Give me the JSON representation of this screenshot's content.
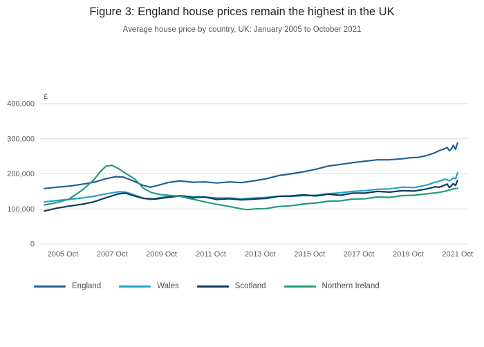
{
  "title": "Figure 3: England house prices remain the highest in the UK",
  "subtitle": "Average house price by country, UK: January 2005 to October 2021",
  "chart_data": {
    "type": "line",
    "title": "Figure 3: England house prices remain the highest in the UK",
    "subtitle": "Average house price by country, UK: January 2005 to October 2021",
    "unit_label": "£",
    "grid": true,
    "legend_position": "bottom-left",
    "ylim": [
      0,
      400000
    ],
    "yticks": [
      0,
      100000,
      200000,
      300000,
      400000
    ],
    "ytick_labels": [
      "0",
      "100,000",
      "200,000",
      "300,000",
      "400,000"
    ],
    "x_domain": [
      2004.8,
      2022.15
    ],
    "xticks": [
      2005.75,
      2007.75,
      2009.75,
      2011.75,
      2013.75,
      2015.75,
      2017.75,
      2019.75,
      2021.75
    ],
    "xtick_labels": [
      "2005 Oct",
      "2007 Oct",
      "2009 Oct",
      "2011 Oct",
      "2013 Oct",
      "2015 Oct",
      "2017 Oct",
      "2019 Oct",
      "2021 Oct"
    ],
    "series": [
      {
        "name": "England",
        "color": "#206095",
        "points": [
          [
            2005,
            158000
          ],
          [
            2005.5,
            162000
          ],
          [
            2006,
            165000
          ],
          [
            2006.5,
            170000
          ],
          [
            2007,
            176000
          ],
          [
            2007.5,
            186000
          ],
          [
            2007.9,
            192000
          ],
          [
            2008.2,
            191000
          ],
          [
            2008.6,
            180000
          ],
          [
            2009,
            167000
          ],
          [
            2009.3,
            162000
          ],
          [
            2009.6,
            167000
          ],
          [
            2010,
            175000
          ],
          [
            2010.5,
            180000
          ],
          [
            2011,
            176000
          ],
          [
            2011.5,
            177000
          ],
          [
            2012,
            174000
          ],
          [
            2012.5,
            177000
          ],
          [
            2013,
            175000
          ],
          [
            2013.5,
            180000
          ],
          [
            2014,
            186000
          ],
          [
            2014.5,
            195000
          ],
          [
            2015,
            200000
          ],
          [
            2015.5,
            206000
          ],
          [
            2016,
            213000
          ],
          [
            2016.5,
            222000
          ],
          [
            2017,
            227000
          ],
          [
            2017.5,
            232000
          ],
          [
            2018,
            236000
          ],
          [
            2018.5,
            240000
          ],
          [
            2019,
            240000
          ],
          [
            2019.5,
            243000
          ],
          [
            2019.83,
            246000
          ],
          [
            2020.17,
            247000
          ],
          [
            2020.5,
            252000
          ],
          [
            2020.83,
            260000
          ],
          [
            2021,
            266000
          ],
          [
            2021.17,
            270000
          ],
          [
            2021.33,
            275000
          ],
          [
            2021.42,
            266000
          ],
          [
            2021.5,
            271000
          ],
          [
            2021.58,
            281000
          ],
          [
            2021.67,
            270000
          ],
          [
            2021.75,
            288000
          ]
        ]
      },
      {
        "name": "Wales",
        "color": "#27a0cc",
        "points": [
          [
            2005,
            120000
          ],
          [
            2005.5,
            124000
          ],
          [
            2006,
            127000
          ],
          [
            2006.5,
            131000
          ],
          [
            2007,
            136000
          ],
          [
            2007.5,
            143000
          ],
          [
            2008,
            149000
          ],
          [
            2008.3,
            148000
          ],
          [
            2008.6,
            141000
          ],
          [
            2009,
            131000
          ],
          [
            2009.3,
            127000
          ],
          [
            2009.6,
            131000
          ],
          [
            2010,
            135000
          ],
          [
            2010.5,
            138000
          ],
          [
            2011,
            135000
          ],
          [
            2011.5,
            134000
          ],
          [
            2012,
            131000
          ],
          [
            2012.5,
            131000
          ],
          [
            2013,
            129000
          ],
          [
            2013.5,
            131000
          ],
          [
            2014,
            133000
          ],
          [
            2014.5,
            136000
          ],
          [
            2015,
            136000
          ],
          [
            2015.5,
            138000
          ],
          [
            2016,
            139000
          ],
          [
            2016.5,
            143000
          ],
          [
            2017,
            146000
          ],
          [
            2017.5,
            150000
          ],
          [
            2018,
            152000
          ],
          [
            2018.5,
            156000
          ],
          [
            2019,
            157000
          ],
          [
            2019.5,
            162000
          ],
          [
            2020,
            161000
          ],
          [
            2020.5,
            168000
          ],
          [
            2020.83,
            176000
          ],
          [
            2021,
            179000
          ],
          [
            2021.25,
            185000
          ],
          [
            2021.42,
            180000
          ],
          [
            2021.58,
            188000
          ],
          [
            2021.67,
            186000
          ],
          [
            2021.75,
            203000
          ]
        ]
      },
      {
        "name": "Scotland",
        "color": "#0c3a5d",
        "points": [
          [
            2005,
            94000
          ],
          [
            2005.5,
            102000
          ],
          [
            2006,
            108000
          ],
          [
            2006.5,
            113000
          ],
          [
            2007,
            120000
          ],
          [
            2007.5,
            132000
          ],
          [
            2008,
            143000
          ],
          [
            2008.3,
            145000
          ],
          [
            2008.6,
            138000
          ],
          [
            2009,
            130000
          ],
          [
            2009.5,
            128000
          ],
          [
            2010,
            133000
          ],
          [
            2010.5,
            137000
          ],
          [
            2011,
            132000
          ],
          [
            2011.5,
            134000
          ],
          [
            2012,
            127000
          ],
          [
            2012.5,
            129000
          ],
          [
            2013,
            126000
          ],
          [
            2013.5,
            128000
          ],
          [
            2014,
            130000
          ],
          [
            2014.5,
            136000
          ],
          [
            2015,
            137000
          ],
          [
            2015.5,
            140000
          ],
          [
            2016,
            137000
          ],
          [
            2016.5,
            142000
          ],
          [
            2017,
            139000
          ],
          [
            2017.5,
            145000
          ],
          [
            2018,
            145000
          ],
          [
            2018.5,
            150000
          ],
          [
            2019,
            148000
          ],
          [
            2019.5,
            152000
          ],
          [
            2020,
            151000
          ],
          [
            2020.5,
            157000
          ],
          [
            2020.83,
            163000
          ],
          [
            2021,
            162000
          ],
          [
            2021.17,
            166000
          ],
          [
            2021.33,
            171000
          ],
          [
            2021.42,
            161000
          ],
          [
            2021.58,
            172000
          ],
          [
            2021.67,
            167000
          ],
          [
            2021.75,
            181000
          ]
        ]
      },
      {
        "name": "Northern Ireland",
        "color": "#239b80",
        "points": [
          [
            2005,
            111000
          ],
          [
            2005.5,
            118000
          ],
          [
            2006,
            128000
          ],
          [
            2006.5,
            152000
          ],
          [
            2007,
            182000
          ],
          [
            2007.25,
            205000
          ],
          [
            2007.5,
            222000
          ],
          [
            2007.75,
            224000
          ],
          [
            2008,
            215000
          ],
          [
            2008.33,
            200000
          ],
          [
            2008.67,
            185000
          ],
          [
            2009,
            160000
          ],
          [
            2009.33,
            147000
          ],
          [
            2009.67,
            141000
          ],
          [
            2010,
            139000
          ],
          [
            2010.5,
            136000
          ],
          [
            2011,
            128000
          ],
          [
            2011.5,
            120000
          ],
          [
            2012,
            113000
          ],
          [
            2012.5,
            107000
          ],
          [
            2013,
            100000
          ],
          [
            2013.25,
            98000
          ],
          [
            2013.5,
            100000
          ],
          [
            2014,
            101000
          ],
          [
            2014.5,
            107000
          ],
          [
            2015,
            109000
          ],
          [
            2015.5,
            114000
          ],
          [
            2016,
            117000
          ],
          [
            2016.5,
            122000
          ],
          [
            2017,
            123000
          ],
          [
            2017.5,
            128000
          ],
          [
            2018,
            129000
          ],
          [
            2018.5,
            134000
          ],
          [
            2019,
            133000
          ],
          [
            2019.5,
            138000
          ],
          [
            2020,
            139000
          ],
          [
            2020.5,
            143000
          ],
          [
            2021,
            147000
          ],
          [
            2021.33,
            152000
          ],
          [
            2021.58,
            157000
          ],
          [
            2021.75,
            159000
          ]
        ]
      }
    ]
  }
}
